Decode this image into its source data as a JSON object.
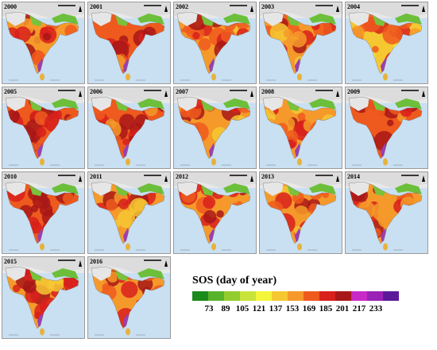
{
  "panels": [
    {
      "year": "2000",
      "heat": 0.55
    },
    {
      "year": "2001",
      "heat": 0.65
    },
    {
      "year": "2002",
      "heat": 0.55
    },
    {
      "year": "2003",
      "heat": 0.5
    },
    {
      "year": "2004",
      "heat": 0.35
    },
    {
      "year": "2005",
      "heat": 0.85
    },
    {
      "year": "2006",
      "heat": 0.7
    },
    {
      "year": "2007",
      "heat": 0.45
    },
    {
      "year": "2008",
      "heat": 0.55
    },
    {
      "year": "2009",
      "heat": 0.8
    },
    {
      "year": "2010",
      "heat": 0.7
    },
    {
      "year": "2011",
      "heat": 0.45
    },
    {
      "year": "2012",
      "heat": 0.6
    },
    {
      "year": "2013",
      "heat": 0.5
    },
    {
      "year": "2014",
      "heat": 0.6
    },
    {
      "year": "2015",
      "heat": 0.55
    },
    {
      "year": "2016",
      "heat": 0.5
    }
  ],
  "legend": {
    "title": "SOS (day of year)",
    "colors": [
      "#1a8a1a",
      "#58b32a",
      "#93cc2e",
      "#c8e43a",
      "#f5f53a",
      "#f5c832",
      "#f59a2a",
      "#ee5a1e",
      "#d8201c",
      "#a81818",
      "#c82ac8",
      "#9a22b4",
      "#5c1a9a"
    ],
    "labels": [
      "73",
      "89",
      "105",
      "121",
      "137",
      "153",
      "169",
      "185",
      "201",
      "217",
      "233"
    ]
  }
}
